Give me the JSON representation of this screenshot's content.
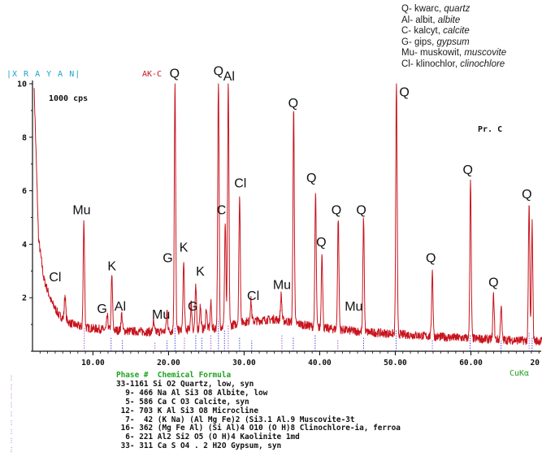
{
  "chart_data": {
    "type": "line",
    "title": "AK-C",
    "software_label": "X R A Y A N",
    "cps_label": "1000 cps",
    "sample_label": "Pr. C",
    "radiation_label": "CuKα",
    "xlim": [
      2,
      70
    ],
    "ylim": [
      0,
      10
    ],
    "x_ticks": [
      10,
      20,
      30,
      40,
      50,
      60
    ],
    "x_tick_labels": [
      "10.00",
      "20.00",
      "30.00",
      "40.00",
      "50.00",
      "60.00",
      "20"
    ],
    "y_ticks": [
      2,
      4,
      6,
      8,
      10
    ],
    "background_curve": [
      [
        2.2,
        10.0
      ],
      [
        2.8,
        4.2
      ],
      [
        3.5,
        2.7
      ],
      [
        4.5,
        1.85
      ],
      [
        5.5,
        1.35
      ],
      [
        7,
        1.05
      ],
      [
        8.5,
        0.9
      ],
      [
        10,
        0.85
      ],
      [
        12,
        0.8
      ],
      [
        15,
        0.75
      ],
      [
        18,
        0.72
      ],
      [
        20,
        0.75
      ],
      [
        22,
        0.8
      ],
      [
        24,
        0.82
      ],
      [
        26,
        0.85
      ],
      [
        28,
        0.95
      ],
      [
        30,
        1.1
      ],
      [
        32,
        1.15
      ],
      [
        34,
        1.2
      ],
      [
        36,
        1.1
      ],
      [
        38,
        0.98
      ],
      [
        40,
        0.88
      ],
      [
        43,
        0.8
      ],
      [
        46,
        0.72
      ],
      [
        50,
        0.65
      ],
      [
        55,
        0.55
      ],
      [
        60,
        0.48
      ],
      [
        65,
        0.42
      ],
      [
        69.5,
        0.38
      ]
    ],
    "peaks": [
      {
        "x": 6.3,
        "y": 2.1
      },
      {
        "x": 8.8,
        "y": 4.9
      },
      {
        "x": 11.9,
        "y": 1.3
      },
      {
        "x": 12.5,
        "y": 2.8
      },
      {
        "x": 13.8,
        "y": 1.4
      },
      {
        "x": 18.0,
        "y": 1.1
      },
      {
        "x": 19.8,
        "y": 1.5
      },
      {
        "x": 20.85,
        "y": 10.0
      },
      {
        "x": 22.0,
        "y": 3.3
      },
      {
        "x": 23.0,
        "y": 1.8
      },
      {
        "x": 23.6,
        "y": 2.4
      },
      {
        "x": 24.2,
        "y": 1.7
      },
      {
        "x": 25.0,
        "y": 1.6
      },
      {
        "x": 25.6,
        "y": 1.8
      },
      {
        "x": 26.6,
        "y": 10.0
      },
      {
        "x": 27.5,
        "y": 4.8
      },
      {
        "x": 27.9,
        "y": 10.0
      },
      {
        "x": 29.4,
        "y": 5.8
      },
      {
        "x": 30.9,
        "y": 1.9
      },
      {
        "x": 34.9,
        "y": 2.1
      },
      {
        "x": 36.55,
        "y": 9.0
      },
      {
        "x": 39.45,
        "y": 5.9
      },
      {
        "x": 40.3,
        "y": 3.7
      },
      {
        "x": 42.45,
        "y": 5.0
      },
      {
        "x": 45.8,
        "y": 5.0
      },
      {
        "x": 50.15,
        "y": 10.0
      },
      {
        "x": 54.9,
        "y": 3.0
      },
      {
        "x": 59.95,
        "y": 6.3
      },
      {
        "x": 63.0,
        "y": 2.1
      },
      {
        "x": 64.0,
        "y": 1.7
      },
      {
        "x": 67.7,
        "y": 5.5
      },
      {
        "x": 68.1,
        "y": 4.8
      }
    ],
    "annotations": [
      {
        "label": "Cl",
        "x": 5.0,
        "y": 2.5
      },
      {
        "label": "Mu",
        "x": 8.5,
        "y": 5.0
      },
      {
        "label": "G",
        "x": 11.2,
        "y": 1.3
      },
      {
        "label": "K",
        "x": 12.5,
        "y": 2.9
      },
      {
        "label": "Al",
        "x": 13.6,
        "y": 1.4
      },
      {
        "label": "Mu",
        "x": 19.0,
        "y": 1.1
      },
      {
        "label": "G",
        "x": 19.9,
        "y": 3.2
      },
      {
        "label": "K",
        "x": 22.0,
        "y": 3.6
      },
      {
        "label": "G",
        "x": 23.2,
        "y": 1.4
      },
      {
        "label": "K",
        "x": 24.2,
        "y": 2.7
      },
      {
        "label": "Q",
        "x": 20.8,
        "y": 10.1
      },
      {
        "label": "C",
        "x": 27.0,
        "y": 5.0
      },
      {
        "label": "Q",
        "x": 26.6,
        "y": 10.2
      },
      {
        "label": "Al",
        "x": 28.0,
        "y": 10.0
      },
      {
        "label": "Cl",
        "x": 29.5,
        "y": 6.0
      },
      {
        "label": "Cl",
        "x": 31.2,
        "y": 1.8
      },
      {
        "label": "Mu",
        "x": 35.0,
        "y": 2.2
      },
      {
        "label": "Q",
        "x": 36.5,
        "y": 9.0
      },
      {
        "label": "Q",
        "x": 38.9,
        "y": 6.2
      },
      {
        "label": "Q",
        "x": 40.2,
        "y": 3.8
      },
      {
        "label": "Q",
        "x": 42.2,
        "y": 5.0
      },
      {
        "label": "Q",
        "x": 45.5,
        "y": 5.0
      },
      {
        "label": "Mu",
        "x": 44.5,
        "y": 1.4
      },
      {
        "label": "Q",
        "x": 51.2,
        "y": 9.4
      },
      {
        "label": "Q",
        "x": 54.7,
        "y": 3.2
      },
      {
        "label": "Q",
        "x": 59.6,
        "y": 6.5
      },
      {
        "label": "Q",
        "x": 63.0,
        "y": 2.3
      },
      {
        "label": "Q",
        "x": 67.4,
        "y": 5.6
      }
    ],
    "reference_lines": [
      [
        8.85,
        0.9
      ],
      [
        12.4,
        0.5
      ],
      [
        13.9,
        0.45
      ],
      [
        18.2,
        0.35
      ],
      [
        19.8,
        0.4
      ],
      [
        20.85,
        0.9
      ],
      [
        22.1,
        0.5
      ],
      [
        23.6,
        0.6
      ],
      [
        24.4,
        0.5
      ],
      [
        25.6,
        0.6
      ],
      [
        26.6,
        1.2
      ],
      [
        27.4,
        0.8
      ],
      [
        27.9,
        1.0
      ],
      [
        29.4,
        0.5
      ],
      [
        31.0,
        0.4
      ],
      [
        35.0,
        0.6
      ],
      [
        36.5,
        0.5
      ],
      [
        39.4,
        0.6
      ],
      [
        42.4,
        0.45
      ],
      [
        45.8,
        0.5
      ],
      [
        50.1,
        0.8
      ],
      [
        54.9,
        0.45
      ],
      [
        59.9,
        0.6
      ],
      [
        64.0,
        0.4
      ],
      [
        67.7,
        0.7
      ],
      [
        68.1,
        0.5
      ]
    ]
  },
  "legend": [
    {
      "code": "Q- kwarc, ",
      "name": "quartz"
    },
    {
      "code": "Al- albit, ",
      "name": "albite"
    },
    {
      "code": "C- kalcyt, ",
      "name": "calcite"
    },
    {
      "code": "G- gips, ",
      "name": "gypsum"
    },
    {
      "code": "Mu- muskowit, ",
      "name": "muscovite"
    },
    {
      "code": "Cl- klinochlor, ",
      "name": "clinochlore"
    }
  ],
  "phase_table": {
    "header": "Phase #  Chemical Formula",
    "rows": [
      "33-1161 Si O2 Quartz, low, syn",
      "  9- 466 Na Al Si3 O8 Albite, low",
      "  5- 586 Ca C O3 Calcite, syn",
      " 12- 703 K Al Si3 O8 Microcline",
      "  7-  42 (K Na) (Al Mg Fe)2 (Si3.1 Al.9 Muscovite-3t",
      " 16- 362 (Mg Fe Al) (Si Al)4 O10 (O H)8 Clinochlore-ia, ferroa",
      "  6- 221 Al2 Si2 O5 (O H)4 Kaolinite 1md",
      " 33- 311 Ca S O4 . 2 H2O Gypsum, syn"
    ]
  },
  "colors": {
    "pattern": "#c8141e",
    "axis": "#111111",
    "header_cyan": "#1aa3c8",
    "table_green": "#1fa31f",
    "ref_blue": "#3b3bd6",
    "ref_purple": "#a050c8"
  }
}
